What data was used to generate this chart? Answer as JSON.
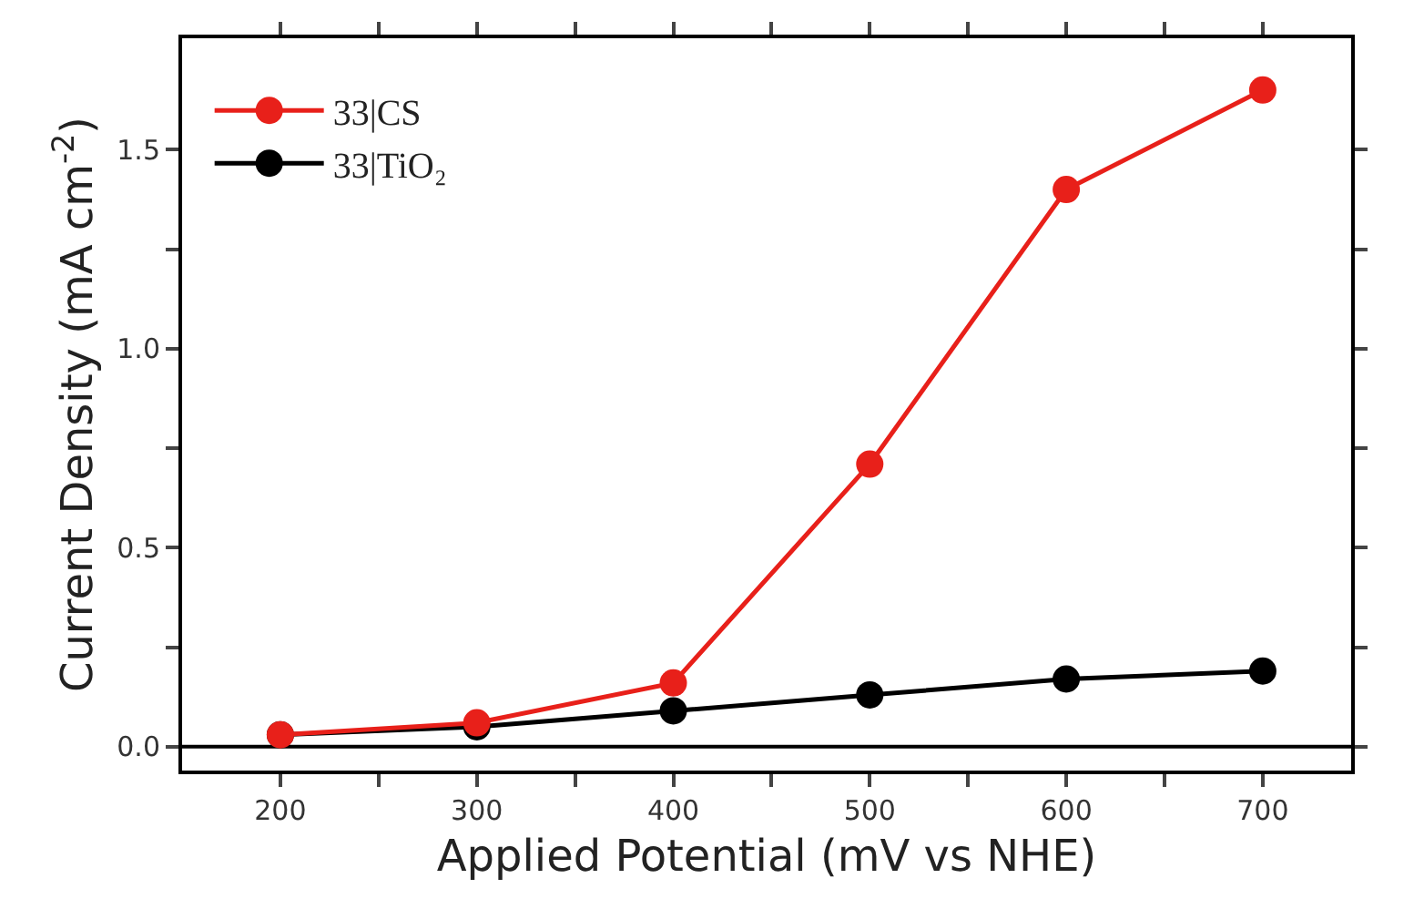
{
  "chart_data": {
    "type": "line",
    "xlabel": "Applied Potential (mV vs NHE)",
    "ylabel": "Current Density (mA cm$^{-2}$)",
    "x": [
      200,
      300,
      400,
      500,
      600,
      700
    ],
    "series": [
      {
        "name": "33|CS",
        "color": "#e8201a",
        "values": [
          0.03,
          0.06,
          0.16,
          0.71,
          1.4,
          1.65
        ]
      },
      {
        "name": "33|TiO₂",
        "color": "#000000",
        "values": [
          0.03,
          0.05,
          0.09,
          0.13,
          0.17,
          0.19
        ]
      }
    ],
    "xlim": [
      150,
      745
    ],
    "ylim": [
      -0.06,
      1.78
    ],
    "xticks": [
      200,
      {
        "value": 250,
        "label": null
      },
      300,
      {
        "value": 350,
        "label": null
      },
      400,
      {
        "value": 450,
        "label": null
      },
      500,
      {
        "value": 550,
        "label": null
      },
      600,
      {
        "value": 650,
        "label": null
      },
      700
    ],
    "yticks": [
      {
        "value": 0,
        "label": "0.0"
      },
      {
        "value": 0.25,
        "label": null
      },
      0.5,
      {
        "value": 0.75,
        "label": null
      },
      {
        "value": 1,
        "label": "1.0"
      },
      {
        "value": 1.25,
        "label": null
      },
      1.5
    ],
    "ref_lines": [
      {
        "axis": "y",
        "value": 0,
        "color": "#000000"
      }
    ],
    "marker": "circle",
    "line_style": "solid",
    "grid": false,
    "legend": "top left"
  }
}
